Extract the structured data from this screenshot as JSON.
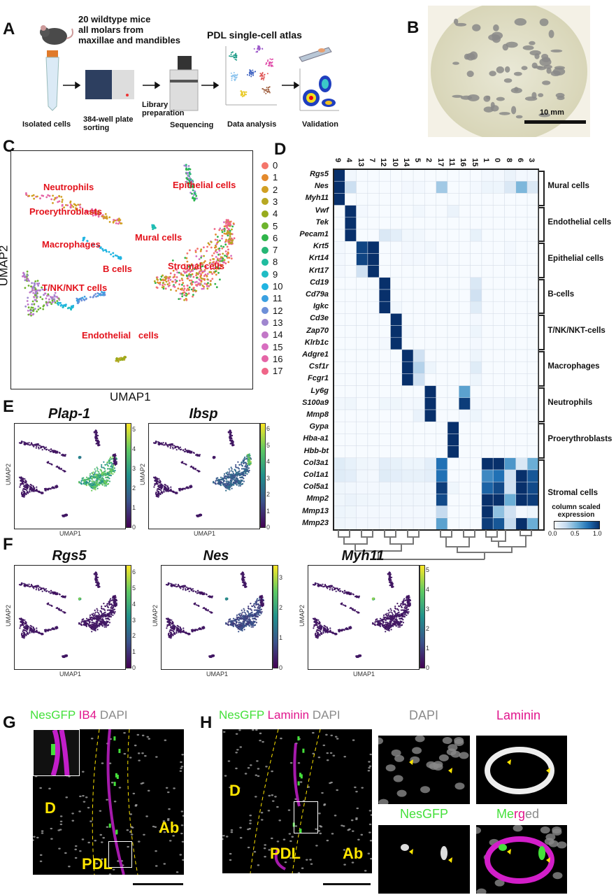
{
  "panel_letters": [
    "A",
    "B",
    "C",
    "D",
    "E",
    "F",
    "G",
    "H"
  ],
  "panelA": {
    "title_mice": [
      "20 wildtype mice",
      "all molars from",
      "maxillae and mandibles"
    ],
    "atlas_title": "PDL single-cell atlas",
    "steps": [
      "Isolated cells",
      "384-well plate",
      "sorting",
      "Library",
      "preparation",
      "Sequencing",
      "Data analysis",
      "Validation"
    ],
    "arrow_icon": "arrow-right-icon"
  },
  "panelB": {
    "scale_label": "10 mm"
  },
  "panelC": {
    "xlabel": "UMAP1",
    "ylabel": "UMAP2",
    "cluster_labels": [
      "Neutrophils",
      "Proerythroblasts",
      "Macrophages",
      "B cells",
      "T/NK/NKT cells",
      "Endothelial   cells",
      "Mural cells",
      "Epithelial cells",
      "Stromal cells"
    ],
    "label_color": "#e3121b",
    "legend": [
      "0",
      "1",
      "2",
      "3",
      "4",
      "5",
      "6",
      "7",
      "8",
      "9",
      "10",
      "11",
      "12",
      "13",
      "14",
      "15",
      "16",
      "17"
    ],
    "legend_colors": [
      "#f4766b",
      "#e48a2d",
      "#d19f22",
      "#b7a822",
      "#97ab1d",
      "#6db42d",
      "#2fb54a",
      "#26b675",
      "#1fbc9f",
      "#1fbcc4",
      "#20b4e1",
      "#3aa0e1",
      "#6d8fd8",
      "#9f86cf",
      "#c277c7",
      "#d86ec0",
      "#e565a6",
      "#ef6588"
    ]
  },
  "chart_data": {
    "type": "heatmap",
    "columns": [
      "9",
      "4",
      "13",
      "7",
      "12",
      "10",
      "14",
      "5",
      "2",
      "17",
      "11",
      "16",
      "15",
      "1",
      "0",
      "8",
      "6",
      "3"
    ],
    "rows": [
      "Rgs5",
      "Nes",
      "Myh11",
      "Vwf",
      "Tek",
      "Pecam1",
      "Krt5",
      "Krt14",
      "Krt17",
      "Cd19",
      "Cd79a",
      "Igkc",
      "Cd3e",
      "Zap70",
      "Klrb1c",
      "Adgre1",
      "Csf1r",
      "Fcgr1",
      "Ly6g",
      "S100a9",
      "Mmp8",
      "Gypa",
      "Hba-a1",
      "Hbb-bt",
      "Col3a1",
      "Col1a1",
      "Col5a1",
      "Mmp2",
      "Mmp13",
      "Mmp23"
    ],
    "values": [
      [
        1,
        0.03,
        0,
        0,
        0,
        0,
        0,
        0,
        0,
        0,
        0,
        0,
        0,
        0.02,
        0.02,
        0.06,
        0.02,
        0.02
      ],
      [
        1,
        0.22,
        0,
        0,
        0,
        0,
        0.02,
        0.02,
        0,
        0.35,
        0,
        0,
        0.02,
        0.05,
        0.05,
        0.15,
        0.45,
        0.15
      ],
      [
        1,
        0,
        0,
        0,
        0,
        0,
        0,
        0,
        0,
        0,
        0,
        0,
        0,
        0,
        0,
        0,
        0,
        0
      ],
      [
        0,
        1,
        0.02,
        0,
        0,
        0,
        0,
        0.03,
        0,
        0,
        0.06,
        0,
        0,
        0,
        0,
        0,
        0,
        0
      ],
      [
        0,
        1,
        0,
        0,
        0,
        0,
        0,
        0,
        0,
        0,
        0,
        0,
        0,
        0,
        0,
        0,
        0,
        0
      ],
      [
        0,
        1,
        0,
        0,
        0.15,
        0.1,
        0.03,
        0.03,
        0,
        0,
        0,
        0,
        0.08,
        0,
        0,
        0,
        0,
        0
      ],
      [
        0.02,
        0,
        0.92,
        1,
        0,
        0,
        0.02,
        0.02,
        0.03,
        0,
        0,
        0,
        0,
        0,
        0,
        0.02,
        0,
        0
      ],
      [
        0.02,
        0,
        0.92,
        1,
        0,
        0,
        0.02,
        0.02,
        0,
        0.02,
        0,
        0,
        0,
        0,
        0,
        0.02,
        0,
        0
      ],
      [
        0.02,
        0,
        0.2,
        1,
        0,
        0,
        0,
        0,
        0,
        0,
        0,
        0,
        0,
        0,
        0,
        0,
        0,
        0
      ],
      [
        0,
        0,
        0,
        0,
        1,
        0,
        0,
        0,
        0,
        0,
        0,
        0,
        0.15,
        0,
        0,
        0,
        0,
        0
      ],
      [
        0,
        0,
        0,
        0,
        1,
        0,
        0,
        0,
        0,
        0,
        0,
        0,
        0.2,
        0,
        0,
        0,
        0,
        0
      ],
      [
        0,
        0,
        0,
        0,
        1,
        0.03,
        0,
        0,
        0,
        0,
        0,
        0,
        0.12,
        0,
        0,
        0,
        0,
        0
      ],
      [
        0,
        0,
        0,
        0,
        0,
        1,
        0,
        0,
        0,
        0,
        0,
        0,
        0.02,
        0,
        0,
        0,
        0,
        0
      ],
      [
        0,
        0,
        0,
        0,
        0,
        1,
        0.02,
        0,
        0,
        0,
        0,
        0,
        0.05,
        0,
        0,
        0,
        0,
        0
      ],
      [
        0,
        0,
        0,
        0,
        0.02,
        1,
        0,
        0,
        0,
        0,
        0,
        0,
        0.02,
        0,
        0,
        0,
        0,
        0
      ],
      [
        0,
        0,
        0,
        0,
        0,
        0,
        1,
        0.2,
        0,
        0,
        0,
        0,
        0.05,
        0,
        0,
        0,
        0,
        0
      ],
      [
        0,
        0,
        0,
        0,
        0,
        0,
        1,
        0.3,
        0.05,
        0,
        0,
        0,
        0.12,
        0,
        0,
        0,
        0,
        0
      ],
      [
        0,
        0,
        0,
        0,
        0,
        0,
        1,
        0.2,
        0,
        0,
        0,
        0,
        0.05,
        0,
        0,
        0,
        0,
        0
      ],
      [
        0,
        0,
        0,
        0,
        0,
        0,
        0,
        0,
        1,
        0,
        0,
        0.55,
        0,
        0,
        0,
        0,
        0,
        0
      ],
      [
        0.03,
        0.04,
        0,
        0,
        0.04,
        0.04,
        0.02,
        0.03,
        1,
        0,
        0,
        0.95,
        0.02,
        0.02,
        0.02,
        0.04,
        0.02,
        0.02
      ],
      [
        0,
        0,
        0,
        0,
        0,
        0,
        0,
        0.07,
        1,
        0,
        0,
        0.02,
        0.05,
        0,
        0,
        0,
        0,
        0
      ],
      [
        0,
        0,
        0,
        0,
        0,
        0,
        0,
        0,
        0,
        0,
        1,
        0,
        0,
        0,
        0,
        0,
        0,
        0
      ],
      [
        0,
        0,
        0,
        0,
        0,
        0,
        0,
        0,
        0,
        0,
        1,
        0,
        0,
        0,
        0,
        0,
        0,
        0
      ],
      [
        0,
        0,
        0,
        0,
        0,
        0,
        0,
        0,
        0,
        0,
        1,
        0,
        0,
        0,
        0,
        0,
        0,
        0
      ],
      [
        0.12,
        0.08,
        0.04,
        0.03,
        0.1,
        0.08,
        0.05,
        0.05,
        0.1,
        0.75,
        0,
        0,
        0,
        1,
        1,
        0.6,
        0.15,
        0.5
      ],
      [
        0.12,
        0.1,
        0.03,
        0.02,
        0.12,
        0.1,
        0.08,
        0.08,
        0.1,
        0.75,
        0,
        0,
        0,
        0.65,
        0.75,
        0.2,
        1,
        0.85
      ],
      [
        0.04,
        0.03,
        0.02,
        0.02,
        0.03,
        0.03,
        0.03,
        0.03,
        0.03,
        0.95,
        0.04,
        0,
        0,
        0.8,
        0.9,
        0.2,
        1,
        0.9
      ],
      [
        0.04,
        0.06,
        0.04,
        0.03,
        0.03,
        0.03,
        0.03,
        0.03,
        0.03,
        0.9,
        0,
        0,
        0,
        1,
        1,
        0.5,
        1,
        0.95
      ],
      [
        0.05,
        0.04,
        0.02,
        0.02,
        0.02,
        0.02,
        0.02,
        0.02,
        0.02,
        0.25,
        0,
        0,
        0,
        1,
        0.4,
        0.2,
        0.02,
        0.05
      ],
      [
        0.04,
        0.03,
        0.02,
        0.02,
        0.02,
        0.02,
        0.02,
        0.02,
        0.02,
        0.55,
        0,
        0,
        0,
        0.95,
        0.85,
        0.25,
        1,
        0.5
      ]
    ],
    "groups": [
      {
        "name": "Mural cells",
        "rows": 3
      },
      {
        "name": "Endothelial cells",
        "rows": 3
      },
      {
        "name": "Epithelial cells",
        "rows": 3
      },
      {
        "name": "B-cells",
        "rows": 3
      },
      {
        "name": "T/NK/NKT-cells",
        "rows": 3
      },
      {
        "name": "Macrophages",
        "rows": 3
      },
      {
        "name": "Neutrophils",
        "rows": 3
      },
      {
        "name": "Proerythroblasts",
        "rows": 3
      },
      {
        "name": "Stromal cells",
        "rows": 6
      }
    ],
    "colorbar": {
      "label": "column scaled expression",
      "ticks": [
        "0.0",
        "0.5",
        "1.0"
      ],
      "range": [
        0,
        1
      ],
      "colormap": "Blues"
    }
  },
  "panelE": {
    "plots": [
      {
        "gene": "Plap-1",
        "ticks": [
          "0",
          "1",
          "2",
          "3",
          "4",
          "5"
        ],
        "max": 5.3,
        "high": {
          "stromal": 0.75,
          "mural": 0.5
        }
      },
      {
        "gene": "Ibsp",
        "ticks": [
          "0",
          "1",
          "2",
          "3",
          "4",
          "5",
          "6"
        ],
        "max": 6.3,
        "high": {
          "stromal_tip": 0.85,
          "stromal": 0.35
        }
      }
    ],
    "xlabel": "UMAP1",
    "ylabel": "UMAP2"
  },
  "panelF": {
    "plots": [
      {
        "gene": "Rgs5",
        "ticks": [
          "0",
          "1",
          "2",
          "3",
          "4",
          "5",
          "6"
        ],
        "max": 6.4,
        "high": {
          "mural": 0.85
        }
      },
      {
        "gene": "Nes",
        "ticks": [
          "0",
          "1",
          "2",
          "3"
        ],
        "max": 3.4,
        "high": {
          "mural": 0.55,
          "endothelial": 0.35,
          "stromal": 0.25
        }
      },
      {
        "gene": "Myh11",
        "ticks": [
          "0",
          "1",
          "2",
          "3",
          "4",
          "5"
        ],
        "max": 5.2,
        "high": {
          "mural": 0.9
        }
      }
    ],
    "xlabel": "UMAP1",
    "ylabel": "UMAP2"
  },
  "panelG": {
    "label_parts": [
      {
        "t": "NesGFP",
        "c": "#44e03a"
      },
      {
        "t": " IB4",
        "c": "#e0148c"
      },
      {
        "t": " DAPI",
        "c": "#8a8a8a"
      }
    ],
    "regions": [
      "D",
      "Ab",
      "PDL"
    ]
  },
  "panelH": {
    "label_parts": [
      {
        "t": "NesGFP",
        "c": "#44e03a"
      },
      {
        "t": " Laminin",
        "c": "#e0148c"
      },
      {
        "t": " DAPI",
        "c": "#8a8a8a"
      }
    ],
    "regions": [
      "D",
      "PDL",
      "Ab"
    ],
    "subpanels": [
      "DAPI",
      "Laminin",
      "NesGFP"
    ],
    "subpanel_colors": [
      "#8a8a8a",
      "#e0148c",
      "#44e03a"
    ],
    "merged": [
      {
        "t": "Me",
        "c": "#44e03a"
      },
      {
        "t": "rg",
        "c": "#e0148c"
      },
      {
        "t": "ed",
        "c": "#8a8a8a"
      }
    ]
  }
}
